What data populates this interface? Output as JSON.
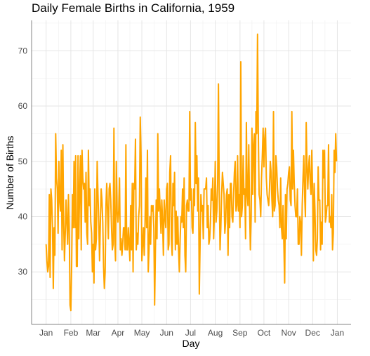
{
  "chart_data": {
    "type": "line",
    "title": "Daily Female Births in California, 1959",
    "xlabel": "Day",
    "ylabel": "Number of Births",
    "x_start": "1959-01-01",
    "x_end": "1959-12-31",
    "x_ticks": [
      {
        "date": "1959-01-01",
        "label": "Jan"
      },
      {
        "date": "1959-02-01",
        "label": "Feb"
      },
      {
        "date": "1959-03-01",
        "label": "Mar"
      },
      {
        "date": "1959-04-01",
        "label": "Apr"
      },
      {
        "date": "1959-05-01",
        "label": "May"
      },
      {
        "date": "1959-06-01",
        "label": "Jun"
      },
      {
        "date": "1959-07-01",
        "label": "Jul"
      },
      {
        "date": "1959-08-01",
        "label": "Aug"
      },
      {
        "date": "1959-09-01",
        "label": "Sep"
      },
      {
        "date": "1959-10-01",
        "label": "Oct"
      },
      {
        "date": "1959-11-01",
        "label": "Nov"
      },
      {
        "date": "1959-12-01",
        "label": "Dec"
      },
      {
        "date": "1960-01-01",
        "label": "Jan"
      }
    ],
    "y_ticks": [
      30,
      40,
      50,
      60,
      70
    ],
    "ylim": [
      20.5,
      75.5
    ],
    "line_color": "#FFA500",
    "grid": true,
    "series": [
      {
        "values": [
          35,
          32,
          30,
          31,
          44,
          29,
          45,
          43,
          38,
          27,
          38,
          33,
          55,
          47,
          45,
          37,
          50,
          43,
          41,
          52,
          34,
          53,
          39,
          32,
          37,
          43,
          39,
          35,
          44,
          38,
          24,
          23,
          31,
          44,
          38,
          50,
          38,
          51,
          31,
          31,
          51,
          36,
          45,
          51,
          34,
          52,
          47,
          45,
          46,
          39,
          48,
          37,
          35,
          52,
          42,
          45,
          39,
          37,
          30,
          35,
          28,
          45,
          34,
          36,
          50,
          44,
          39,
          32,
          39,
          45,
          43,
          39,
          31,
          27,
          30,
          42,
          46,
          41,
          36,
          45,
          46,
          43,
          38,
          34,
          35,
          56,
          36,
          32,
          50,
          41,
          39,
          41,
          47,
          34,
          36,
          33,
          35,
          38,
          38,
          34,
          53,
          34,
          34,
          38,
          35,
          32,
          42,
          34,
          46,
          30,
          46,
          45,
          54,
          34,
          37,
          35,
          40,
          42,
          58,
          51,
          32,
          35,
          38,
          33,
          39,
          47,
          38,
          52,
          30,
          34,
          40,
          35,
          42,
          41,
          42,
          38,
          24,
          34,
          43,
          36,
          55,
          41,
          45,
          41,
          37,
          43,
          39,
          33,
          43,
          40,
          38,
          45,
          46,
          34,
          35,
          48,
          51,
          36,
          33,
          46,
          42,
          48,
          34,
          41,
          35,
          40,
          34,
          30,
          36,
          40,
          39,
          45,
          38,
          47,
          33,
          30,
          42,
          43,
          41,
          41,
          59,
          43,
          45,
          38,
          37,
          45,
          42,
          57,
          46,
          51,
          41,
          47,
          26,
          35,
          44,
          41,
          42,
          36,
          45,
          45,
          45,
          47,
          38,
          42,
          35,
          36,
          39,
          45,
          43,
          47,
          36,
          41,
          50,
          39,
          41,
          46,
          64,
          45,
          34,
          38,
          44,
          48,
          46,
          44,
          37,
          39,
          44,
          45,
          33,
          44,
          38,
          46,
          46,
          40,
          39,
          44,
          48,
          50,
          41,
          42,
          51,
          41,
          44,
          38,
          68,
          40,
          42,
          51,
          44,
          45,
          36,
          57,
          44,
          42,
          53,
          42,
          34,
          40,
          56,
          44,
          53,
          55,
          39,
          59,
          55,
          73,
          55,
          44,
          43,
          40,
          47,
          51,
          56,
          49,
          54,
          56,
          47,
          44,
          43,
          42,
          45,
          50,
          48,
          43,
          40,
          59,
          41,
          42,
          51,
          49,
          45,
          43,
          42,
          38,
          47,
          38,
          36,
          42,
          35,
          28,
          44,
          36,
          45,
          46,
          48,
          49,
          43,
          42,
          59,
          45,
          52,
          46,
          42,
          40,
          40,
          45,
          35,
          35,
          40,
          39,
          33,
          42,
          47,
          51,
          44,
          40,
          57,
          49,
          45,
          49,
          51,
          46,
          44,
          52,
          45,
          32,
          46,
          41,
          34,
          33,
          36,
          49,
          43,
          43,
          34,
          39,
          35,
          52,
          47,
          52,
          39,
          40,
          42,
          42,
          53,
          39,
          40,
          38,
          44,
          34,
          37,
          52,
          48,
          55,
          50
        ]
      }
    ]
  }
}
